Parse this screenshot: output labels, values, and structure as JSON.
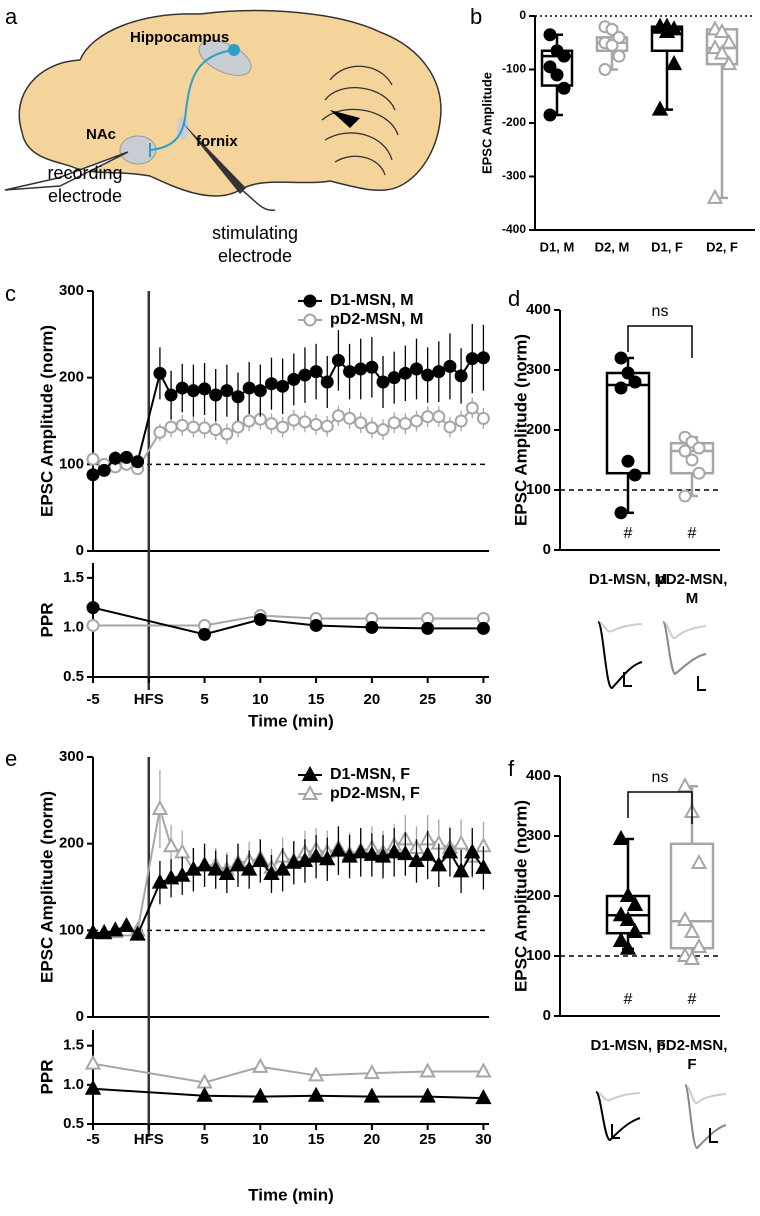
{
  "diagram": {
    "panel": "a",
    "labels": {
      "hippocampus": "Hippocampus",
      "nac": "NAc",
      "fornix": "fornix",
      "recording": "recording electrode",
      "stimulating": "stimulating electrode"
    }
  },
  "chart_data": [
    {
      "type": "box",
      "panel": "b",
      "ylabel": "EPSC Amplitude",
      "categories": [
        "D1, M",
        "D2, M",
        "D1, F",
        "D2, F"
      ],
      "ylim": [
        -400,
        0
      ],
      "yticks": [
        0,
        -100,
        -200,
        -300,
        -400
      ],
      "hline": 0,
      "boxes": [
        {
          "min": -185,
          "q1": -130,
          "median": -75,
          "q3": -65,
          "max": -35,
          "points": [
            -35,
            -65,
            -75,
            -95,
            -110,
            -135,
            -185
          ],
          "color": "#000000",
          "marker": "circle",
          "filled": true
        },
        {
          "min": -100,
          "q1": -65,
          "median": -50,
          "q3": -40,
          "max": -20,
          "points": [
            -20,
            -25,
            -40,
            -50,
            -55,
            -75,
            -100
          ],
          "color": "#a6a6a6",
          "marker": "circle",
          "filled": false
        },
        {
          "min": -175,
          "q1": -65,
          "median": -25,
          "q3": -20,
          "max": -20,
          "points": [
            -20,
            -20,
            -25,
            -22,
            -30,
            -90,
            -175
          ],
          "color": "#000000",
          "marker": "triangle",
          "filled": true
        },
        {
          "min": -340,
          "q1": -90,
          "median": -60,
          "q3": -25,
          "max": -25,
          "points": [
            -25,
            -30,
            -50,
            -60,
            -70,
            -90,
            -340
          ],
          "color": "#a6a6a6",
          "marker": "triangle",
          "filled": false
        }
      ]
    },
    {
      "type": "line",
      "panel": "c",
      "ylabel": "EPSC Amplitude (norm)",
      "xlim": [
        -5,
        30.5
      ],
      "ylim": [
        0,
        300
      ],
      "yticks": [
        0,
        100,
        200,
        300
      ],
      "hline": 100,
      "vline": 0,
      "x": [
        -5,
        -4,
        -3,
        -2,
        -1,
        1,
        2,
        3,
        4,
        5,
        6,
        7,
        8,
        9,
        10,
        11,
        12,
        13,
        14,
        15,
        16,
        17,
        18,
        19,
        20,
        21,
        22,
        23,
        24,
        25,
        26,
        27,
        28,
        29,
        30
      ],
      "series": [
        {
          "name": "pD2-MSN, M",
          "color": "#a6a6a6",
          "marker": "circle",
          "filled": false,
          "values": [
            106,
            100,
            97,
            100,
            95,
            137,
            143,
            145,
            143,
            142,
            140,
            135,
            143,
            150,
            152,
            147,
            143,
            151,
            149,
            146,
            144,
            156,
            153,
            148,
            142,
            140,
            148,
            147,
            150,
            155,
            155,
            143,
            150,
            165,
            153
          ],
          "errors": [
            5,
            5,
            5,
            5,
            5,
            10,
            12,
            12,
            12,
            12,
            12,
            12,
            12,
            12,
            12,
            12,
            12,
            12,
            12,
            12,
            12,
            12,
            12,
            12,
            12,
            12,
            12,
            12,
            12,
            12,
            12,
            12,
            12,
            12,
            12
          ]
        },
        {
          "name": "D1-MSN, M",
          "color": "#000000",
          "marker": "circle",
          "filled": true,
          "values": [
            88,
            93,
            107,
            108,
            103,
            205,
            180,
            188,
            185,
            187,
            180,
            185,
            178,
            188,
            185,
            193,
            190,
            198,
            203,
            207,
            195,
            220,
            207,
            210,
            212,
            195,
            200,
            205,
            210,
            203,
            207,
            213,
            202,
            222,
            223
          ],
          "errors": [
            8,
            6,
            8,
            6,
            5,
            30,
            28,
            28,
            30,
            30,
            30,
            30,
            28,
            30,
            30,
            30,
            32,
            30,
            32,
            32,
            30,
            35,
            32,
            35,
            35,
            30,
            30,
            32,
            35,
            32,
            35,
            38,
            32,
            40,
            38
          ]
        }
      ]
    },
    {
      "type": "line",
      "ylabel": "PPR",
      "xlabel": "Time (min)",
      "xlim": [
        -5,
        30.5
      ],
      "ylim": [
        0.5,
        1.65
      ],
      "yticks": [
        0.5,
        {
          "value": 1,
          "label": "1.0"
        },
        1.5
      ],
      "vline": 0,
      "xticks": [
        -5,
        {
          "value": 0,
          "label": "HFS"
        },
        5,
        10,
        15,
        20,
        25,
        30
      ],
      "x": [
        -5,
        5,
        10,
        15,
        20,
        25,
        30
      ],
      "series": [
        {
          "color": "#a6a6a6",
          "marker": "circle",
          "filled": false,
          "values": [
            1.02,
            1.02,
            1.12,
            1.09,
            1.09,
            1.09,
            1.09
          ],
          "errors": [
            0.03,
            0.04,
            0.05,
            0.05,
            0.05,
            0.05,
            0.05
          ]
        },
        {
          "color": "#000000",
          "marker": "circle",
          "filled": true,
          "values": [
            1.2,
            0.93,
            1.08,
            1.02,
            1.0,
            0.99,
            0.99
          ],
          "errors": [
            0.03,
            0.03,
            0.04,
            0.04,
            0.04,
            0.03,
            0.03
          ]
        }
      ]
    },
    {
      "type": "box",
      "panel": "d",
      "ylabel": "EPSC Amplitude (norm)",
      "categories": [
        "D1-MSN, M",
        "pD2-MSN, M"
      ],
      "ylim": [
        0,
        400
      ],
      "yticks": [
        0,
        100,
        200,
        300,
        400
      ],
      "hline": 100,
      "significance": "ns",
      "box_labels": [
        "#",
        "#"
      ],
      "boxes": [
        {
          "min": 62,
          "q1": 128,
          "median": 275,
          "q3": 295,
          "max": 320,
          "points": [
            320,
            295,
            280,
            270,
            148,
            125,
            62
          ],
          "color": "#000000",
          "marker": "circle",
          "filled": true
        },
        {
          "min": 90,
          "q1": 128,
          "median": 165,
          "q3": 178,
          "max": 188,
          "points": [
            188,
            180,
            170,
            165,
            150,
            128,
            90
          ],
          "color": "#a6a6a6",
          "marker": "circle",
          "filled": false
        }
      ]
    },
    {
      "type": "line",
      "panel": "e",
      "ylabel": "EPSC Amplitude (norm)",
      "xlim": [
        -5,
        30.5
      ],
      "ylim": [
        0,
        300
      ],
      "yticks": [
        0,
        100,
        200,
        300
      ],
      "hline": 100,
      "vline": 0,
      "x": [
        -5,
        -4,
        -3,
        -2,
        -1,
        1,
        2,
        3,
        4,
        5,
        6,
        7,
        8,
        9,
        10,
        11,
        12,
        13,
        14,
        15,
        16,
        17,
        18,
        19,
        20,
        21,
        22,
        23,
        24,
        25,
        26,
        27,
        28,
        29,
        30
      ],
      "series": [
        {
          "name": "pD2-MSN, F",
          "color": "#a6a6a6",
          "marker": "triangle",
          "filled": false,
          "values": [
            97,
            96,
            98,
            100,
            100,
            240,
            197,
            190,
            170,
            175,
            175,
            170,
            178,
            180,
            183,
            172,
            185,
            180,
            190,
            193,
            190,
            195,
            188,
            192,
            195,
            190,
            198,
            205,
            195,
            205,
            200,
            195,
            200,
            185,
            197
          ],
          "errors": [
            4,
            4,
            4,
            4,
            4,
            45,
            25,
            25,
            25,
            20,
            20,
            20,
            22,
            22,
            22,
            22,
            22,
            22,
            25,
            25,
            25,
            25,
            25,
            25,
            25,
            25,
            25,
            28,
            25,
            28,
            28,
            25,
            28,
            25,
            28
          ]
        },
        {
          "name": "D1-MSN, F",
          "color": "#000000",
          "marker": "triangle",
          "filled": true,
          "values": [
            97,
            97,
            100,
            105,
            95,
            155,
            160,
            163,
            170,
            175,
            170,
            165,
            175,
            170,
            180,
            165,
            170,
            178,
            180,
            185,
            182,
            192,
            185,
            190,
            187,
            185,
            190,
            188,
            180,
            187,
            175,
            190,
            168,
            190,
            172
          ],
          "errors": [
            5,
            5,
            5,
            5,
            5,
            25,
            22,
            22,
            25,
            25,
            22,
            22,
            25,
            22,
            25,
            22,
            25,
            25,
            25,
            25,
            25,
            28,
            25,
            28,
            25,
            25,
            28,
            25,
            25,
            28,
            25,
            28,
            25,
            28,
            25
          ]
        }
      ]
    },
    {
      "type": "line",
      "ylabel": "PPR",
      "xlabel": "Time (min)",
      "xlim": [
        -5,
        30.5
      ],
      "ylim": [
        0.5,
        1.7
      ],
      "yticks": [
        0.5,
        {
          "value": 1,
          "label": "1.0"
        },
        1.5
      ],
      "vline": 0,
      "xticks": [
        -5,
        {
          "value": 0,
          "label": "HFS"
        },
        5,
        10,
        15,
        20,
        25,
        30
      ],
      "x": [
        -5,
        5,
        10,
        15,
        20,
        25,
        30
      ],
      "series": [
        {
          "color": "#a6a6a6",
          "marker": "triangle",
          "filled": false,
          "values": [
            1.27,
            1.03,
            1.23,
            1.12,
            1.15,
            1.17,
            1.17
          ],
          "errors": [
            0.06,
            0.06,
            0.08,
            0.07,
            0.06,
            0.08,
            0.07
          ]
        },
        {
          "color": "#000000",
          "marker": "triangle",
          "filled": true,
          "values": [
            0.95,
            0.86,
            0.85,
            0.86,
            0.85,
            0.85,
            0.83
          ],
          "errors": [
            0.02,
            0.02,
            0.02,
            0.02,
            0.02,
            0.02,
            0.02
          ]
        }
      ]
    },
    {
      "type": "box",
      "panel": "f",
      "ylabel": "EPSC Amplitude (norm)",
      "categories": [
        "D1-MSN, F",
        "pD2-MSN, F"
      ],
      "ylim": [
        0,
        400
      ],
      "yticks": [
        0,
        100,
        200,
        300,
        400
      ],
      "hline": 100,
      "significance": "ns",
      "box_labels": [
        "#",
        "#"
      ],
      "boxes": [
        {
          "min": 112,
          "q1": 138,
          "median": 168,
          "q3": 200,
          "max": 295,
          "points": [
            295,
            200,
            185,
            168,
            160,
            140,
            125,
            112
          ],
          "color": "#000000",
          "marker": "triangle",
          "filled": true
        },
        {
          "min": 95,
          "q1": 113,
          "median": 158,
          "q3": 287,
          "max": 383,
          "points": [
            383,
            340,
            255,
            160,
            140,
            115,
            100,
            95
          ],
          "color": "#a6a6a6",
          "marker": "triangle",
          "filled": false
        }
      ]
    }
  ]
}
